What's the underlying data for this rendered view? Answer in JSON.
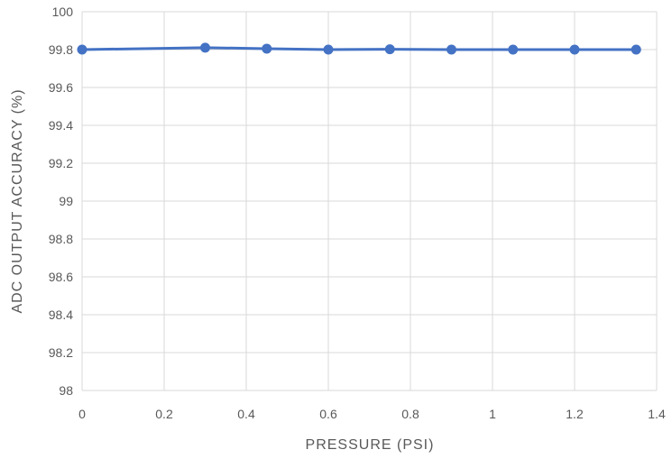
{
  "chart_data": {
    "type": "line",
    "title": "",
    "xlabel": "PRESSURE (PSI)",
    "ylabel": "ADC OUTPUT ACCURACY (%)",
    "xlim": [
      0,
      1.4
    ],
    "ylim": [
      98,
      100
    ],
    "x_ticks": [
      "0",
      "0.2",
      "0.4",
      "0.6",
      "0.8",
      "1",
      "1.2",
      "1.4"
    ],
    "y_ticks": [
      "98",
      "98.2",
      "98.4",
      "98.6",
      "98.8",
      "99",
      "99.2",
      "99.4",
      "99.6",
      "99.8",
      "100"
    ],
    "grid": true,
    "series": [
      {
        "color": "#4472c4",
        "x": [
          0,
          0.3,
          0.45,
          0.6,
          0.75,
          0.9,
          1.05,
          1.2,
          1.35
        ],
        "y": [
          99.8,
          99.81,
          99.805,
          99.8,
          99.802,
          99.8,
          99.8,
          99.8,
          99.8
        ]
      }
    ]
  }
}
